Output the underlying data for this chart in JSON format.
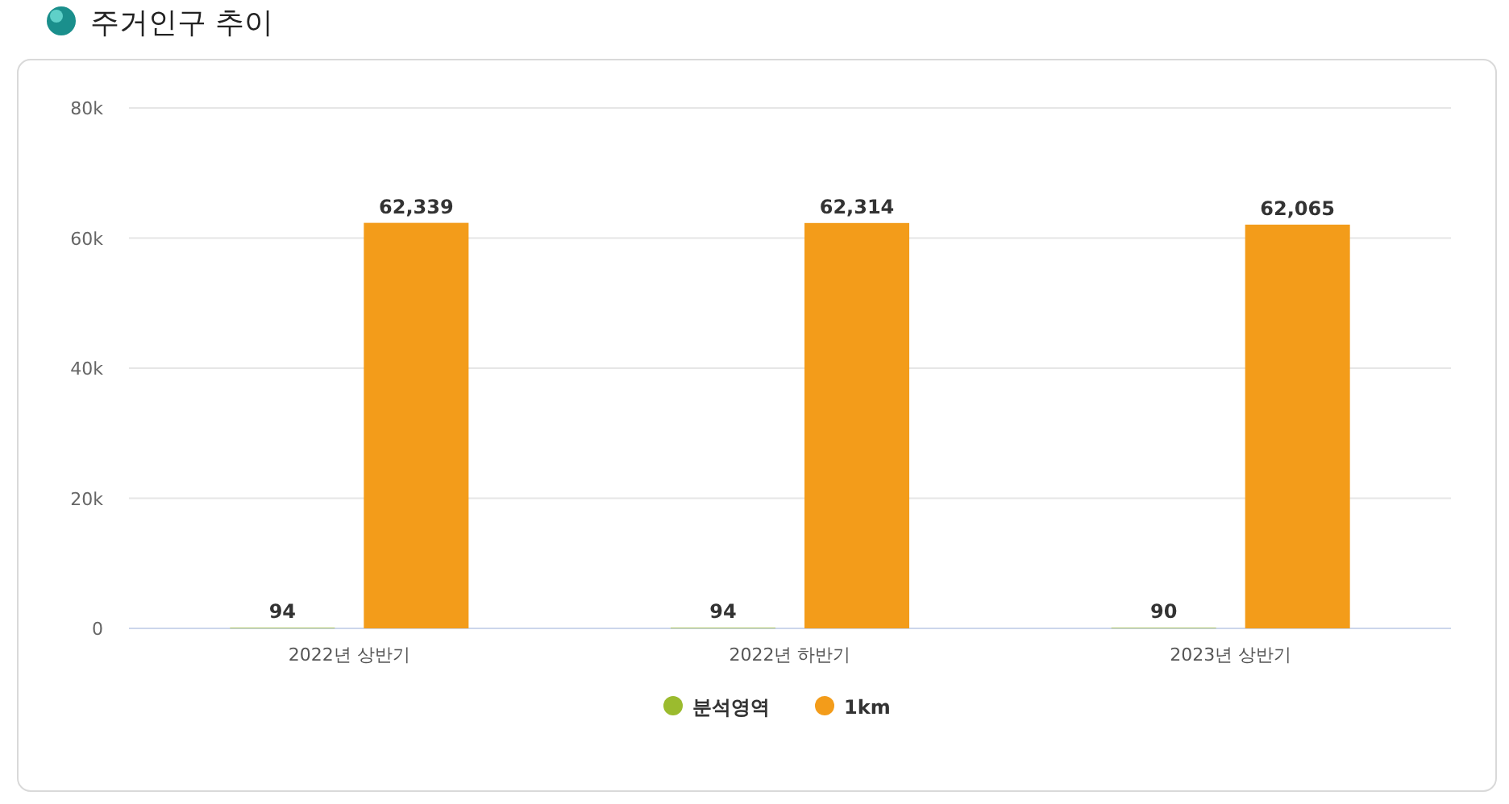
{
  "chart_data": {
    "type": "bar",
    "title": "주거인구 추이",
    "categories": [
      "2022년 상반기",
      "2022년 하반기",
      "2023년 상반기"
    ],
    "series": [
      {
        "name": "분석영역",
        "color": "#9bbb2e",
        "values": [
          94,
          94,
          90
        ],
        "value_labels": [
          "94",
          "94",
          "90"
        ]
      },
      {
        "name": "1km",
        "color": "#f39c1a",
        "values": [
          62339,
          62314,
          62065
        ],
        "value_labels": [
          "62,339",
          "62,314",
          "62,065"
        ]
      }
    ],
    "ylim": [
      0,
      80000
    ],
    "yticks": [
      {
        "value": 0,
        "label": "0"
      },
      {
        "value": 20000,
        "label": "20k"
      },
      {
        "value": 40000,
        "label": "40k"
      },
      {
        "value": 60000,
        "label": "60k"
      },
      {
        "value": 80000,
        "label": "80k"
      }
    ],
    "grid": "y",
    "legend": "bottom"
  }
}
